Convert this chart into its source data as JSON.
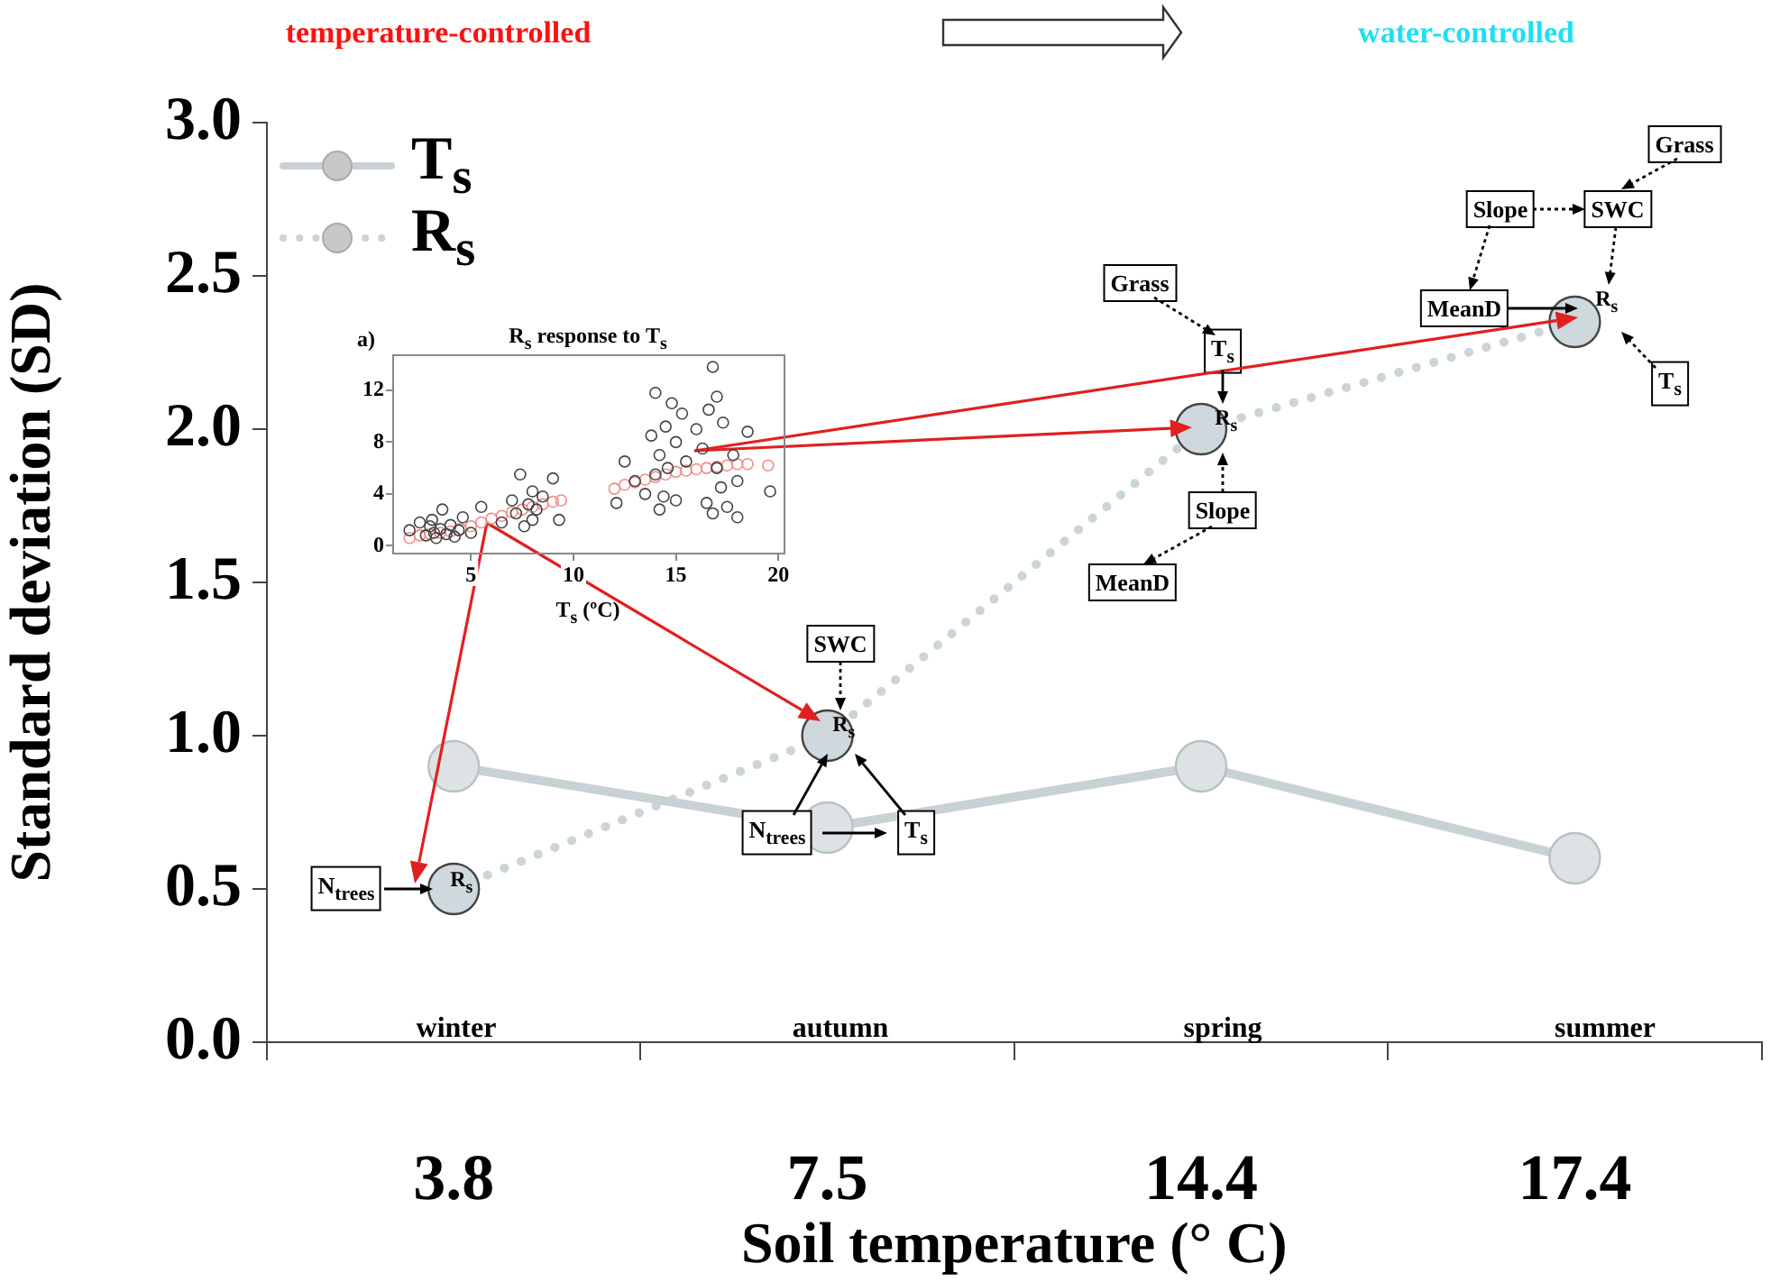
{
  "chart_data": [
    {
      "type": "line",
      "xlabel": "Soil temperature (° C)",
      "ylabel": "Standard deviation (SD)",
      "categories": [
        "3.8",
        "7.5",
        "14.4",
        "17.4"
      ],
      "series": [
        {
          "name": "T$_{s}$",
          "color": "#c8d2d4",
          "values": [
            0.9,
            0.7,
            0.9,
            0.6
          ],
          "line_style": "solid"
        },
        {
          "name": "R$_{s}$",
          "color": "#cbd5d9",
          "values": [
            0.5,
            1.0,
            2.0,
            2.35
          ],
          "line_style": "dotted"
        }
      ],
      "ylim": [
        0,
        3
      ],
      "yticks": [
        {
          "value": 0,
          "label": "0.0"
        },
        {
          "value": 0.5,
          "label": "0.5"
        },
        {
          "value": 1,
          "label": "1.0"
        },
        {
          "value": 1.5,
          "label": "1.5"
        },
        {
          "value": 2,
          "label": "2.0"
        },
        {
          "value": 2.5,
          "label": "2.5"
        },
        {
          "value": 3,
          "label": "3.0"
        }
      ],
      "legend": "top left",
      "marker": "circle",
      "annotations": [
        "temperature-controlled",
        "water-controlled",
        "winter",
        "autumn",
        "spring",
        "summer",
        "N$_{trees}$",
        "R$_{s}$",
        "SWC",
        "R$_{s}$",
        "N$_{trees}$",
        "T$_{s}$",
        "Grass",
        "T$_{s}$",
        "R$_{s}$",
        "Slope",
        "MeanD",
        "Grass",
        "Slope",
        "SWC",
        "MeanD",
        "R$_{s}$",
        "T$_{s}$"
      ]
    },
    {
      "type": "scatter",
      "title": "R$_{s}$ response to T$_{s}$",
      "xlabel": "T$_{s}$ (ºC)",
      "xlim": [
        1.2,
        20.3
      ],
      "xticks": [
        5,
        10,
        15,
        20
      ],
      "ylim": [
        -0.6,
        14.7
      ],
      "yticks": [
        0,
        4,
        8,
        12
      ],
      "marker": "circle",
      "annotations": [
        "a)"
      ],
      "series": [
        {
          "color": "#444444",
          "x": [
            2,
            2.5,
            2.8,
            3,
            3.1,
            3.2,
            3.3,
            3.5,
            3.6,
            3.8,
            4,
            4.2,
            4.4,
            4.6,
            5,
            5.5,
            6.5,
            7,
            7.2,
            7.4,
            7.6,
            7.8,
            8,
            8,
            8.2,
            8.5,
            9,
            9.3,
            12.1,
            12.5,
            13,
            13.5,
            13.8,
            14,
            14,
            14.2,
            14.4,
            14.5,
            14.6,
            14.8,
            15,
            15,
            15.3,
            15.5,
            16,
            16.3,
            16.5,
            16.6,
            16.8,
            17,
            17,
            17.2,
            17.3,
            17.5,
            17.8,
            18,
            18,
            18.5,
            19.6,
            16.8,
            14.2
          ],
          "values": [
            1.2,
            1.8,
            0.8,
            1.5,
            2,
            1,
            0.6,
            1.3,
            2.8,
            0.9,
            1.6,
            0.7,
            1.2,
            2.2,
            1,
            3,
            1.8,
            3.5,
            2.5,
            5.5,
            1.5,
            3.2,
            4.2,
            2,
            2.8,
            3.8,
            5.2,
            2,
            3.3,
            6.5,
            5,
            4,
            8.5,
            11.8,
            5.5,
            7,
            3.8,
            9.2,
            6,
            11,
            3.5,
            8,
            10.2,
            6.5,
            9,
            7.5,
            3.3,
            10.5,
            13.8,
            6,
            11.5,
            4.5,
            9.5,
            3,
            7,
            2.2,
            5,
            8.8,
            4.2,
            2.5,
            2.8
          ]
        },
        {
          "color": "#f08a8a",
          "x": [
            2,
            2.5,
            3,
            3.5,
            4,
            4.5,
            5,
            5.5,
            6,
            6.5,
            7,
            7.5,
            8,
            8.5,
            9,
            9.4,
            12,
            12.5,
            13,
            13.5,
            14,
            14.5,
            15,
            15.5,
            16,
            16.5,
            17,
            17.5,
            18,
            18.5,
            19.5
          ],
          "values": [
            0.6,
            0.8,
            0.9,
            1,
            1.1,
            1.3,
            1.5,
            1.8,
            2.1,
            2.3,
            2.6,
            2.8,
            3,
            3.2,
            3.4,
            3.5,
            4.4,
            4.7,
            4.9,
            5.1,
            5.3,
            5.5,
            5.7,
            5.8,
            5.9,
            6,
            6.1,
            6.2,
            6.3,
            6.3,
            6.2
          ]
        }
      ]
    }
  ]
}
